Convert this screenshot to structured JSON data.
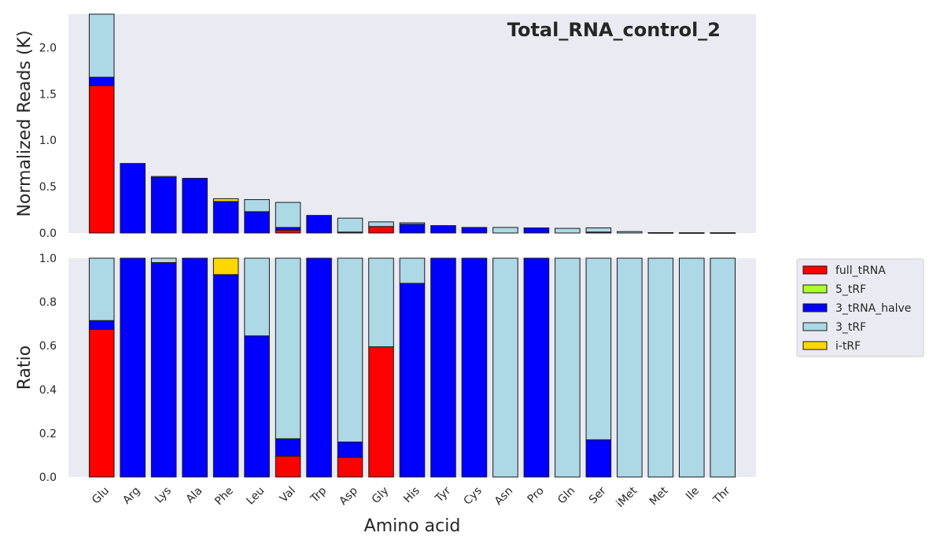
{
  "chart_data": [
    {
      "panel": "top",
      "type": "bar",
      "stacked": true,
      "title": "Total_RNA_control_2",
      "ylabel": "Normalized Reads (K)",
      "xlabel": "",
      "ylim": [
        0,
        2.36
      ],
      "yticks": [
        "0.0",
        "0.5",
        "1.0",
        "1.5",
        "2.0"
      ],
      "grid": false,
      "categories": [
        "Glu",
        "Arg",
        "Lys",
        "Ala",
        "Phe",
        "Leu",
        "Val",
        "Trp",
        "Asp",
        "Gly",
        "His",
        "Tyr",
        "Cys",
        "Asn",
        "Pro",
        "Gln",
        "Ser",
        "iMet",
        "Met",
        "Ile",
        "Thr"
      ],
      "series": [
        {
          "name": "full_tRNA",
          "values": [
            1.59,
            0,
            0,
            0,
            0,
            0,
            0.03,
            0,
            0,
            0.07,
            0,
            0,
            0,
            0,
            0,
            0,
            0,
            0,
            0,
            0,
            0
          ]
        },
        {
          "name": "5_tRF",
          "values": [
            0,
            0,
            0,
            0,
            0,
            0,
            0,
            0,
            0,
            0,
            0,
            0,
            0,
            0,
            0,
            0,
            0,
            0,
            0,
            0,
            0
          ]
        },
        {
          "name": "3_tRNA_halve",
          "values": [
            0.09,
            0.75,
            0.6,
            0.59,
            0.34,
            0.23,
            0.03,
            0.19,
            0.01,
            0,
            0.095,
            0.08,
            0.06,
            0,
            0.055,
            0,
            0.01,
            0,
            0,
            0,
            0
          ]
        },
        {
          "name": "3_tRF",
          "values": [
            0.68,
            0,
            0.01,
            0,
            0,
            0.13,
            0.27,
            0,
            0.15,
            0.05,
            0.015,
            0,
            0,
            0.06,
            0,
            0.05,
            0.045,
            0.015,
            0.004,
            0.003,
            0.003
          ]
        },
        {
          "name": "i-tRF",
          "values": [
            0,
            0,
            0,
            0,
            0.03,
            0,
            0,
            0,
            0,
            0,
            0,
            0,
            0,
            0,
            0,
            0,
            0,
            0,
            0,
            0,
            0
          ]
        }
      ]
    },
    {
      "panel": "bottom",
      "type": "bar",
      "stacked": true,
      "title": "",
      "ylabel": "Ratio",
      "xlabel": "Amino acid",
      "ylim": [
        0,
        1.0
      ],
      "yticks": [
        "0.0",
        "0.2",
        "0.4",
        "0.6",
        "0.8",
        "1.0"
      ],
      "grid": false,
      "legend_position": "right",
      "categories": [
        "Glu",
        "Arg",
        "Lys",
        "Ala",
        "Phe",
        "Leu",
        "Val",
        "Trp",
        "Asp",
        "Gly",
        "His",
        "Tyr",
        "Cys",
        "Asn",
        "Pro",
        "Gln",
        "Ser",
        "iMet",
        "Met",
        "Ile",
        "Thr"
      ],
      "series": [
        {
          "name": "full_tRNA",
          "values": [
            0.675,
            0,
            0,
            0,
            0,
            0,
            0.095,
            0,
            0.09,
            0.595,
            0,
            0,
            0,
            0,
            0,
            0,
            0,
            0,
            0,
            0,
            0
          ]
        },
        {
          "name": "5_tRF",
          "values": [
            0,
            0,
            0,
            0,
            0,
            0,
            0,
            0,
            0,
            0,
            0,
            0,
            0,
            0,
            0,
            0,
            0,
            0,
            0,
            0,
            0
          ]
        },
        {
          "name": "3_tRNA_halve",
          "values": [
            0.04,
            1.0,
            0.98,
            1.0,
            0.925,
            0.645,
            0.08,
            1.0,
            0.07,
            0,
            0.885,
            1.0,
            1.0,
            0,
            1.0,
            0,
            0.17,
            0,
            0,
            0,
            0
          ]
        },
        {
          "name": "3_tRF",
          "values": [
            0.285,
            0,
            0.02,
            0,
            0,
            0.355,
            0.825,
            0,
            0.84,
            0.405,
            0.115,
            0,
            0,
            1.0,
            0,
            1.0,
            0.83,
            1.0,
            1.0,
            1.0,
            1.0
          ]
        },
        {
          "name": "i-tRF",
          "values": [
            0,
            0,
            0,
            0,
            0.075,
            0,
            0,
            0,
            0,
            0,
            0,
            0,
            0,
            0,
            0,
            0,
            0,
            0,
            0,
            0,
            0
          ]
        }
      ]
    }
  ],
  "colors": {
    "full_tRNA": "#ff0000",
    "5_tRF": "#adff2f",
    "3_tRNA_halve": "#0000ff",
    "3_tRF": "#add8e6",
    "i-tRF": "#ffd700",
    "panel_background": "#eaeaf2",
    "bar_edge": "#1a1a1a"
  }
}
